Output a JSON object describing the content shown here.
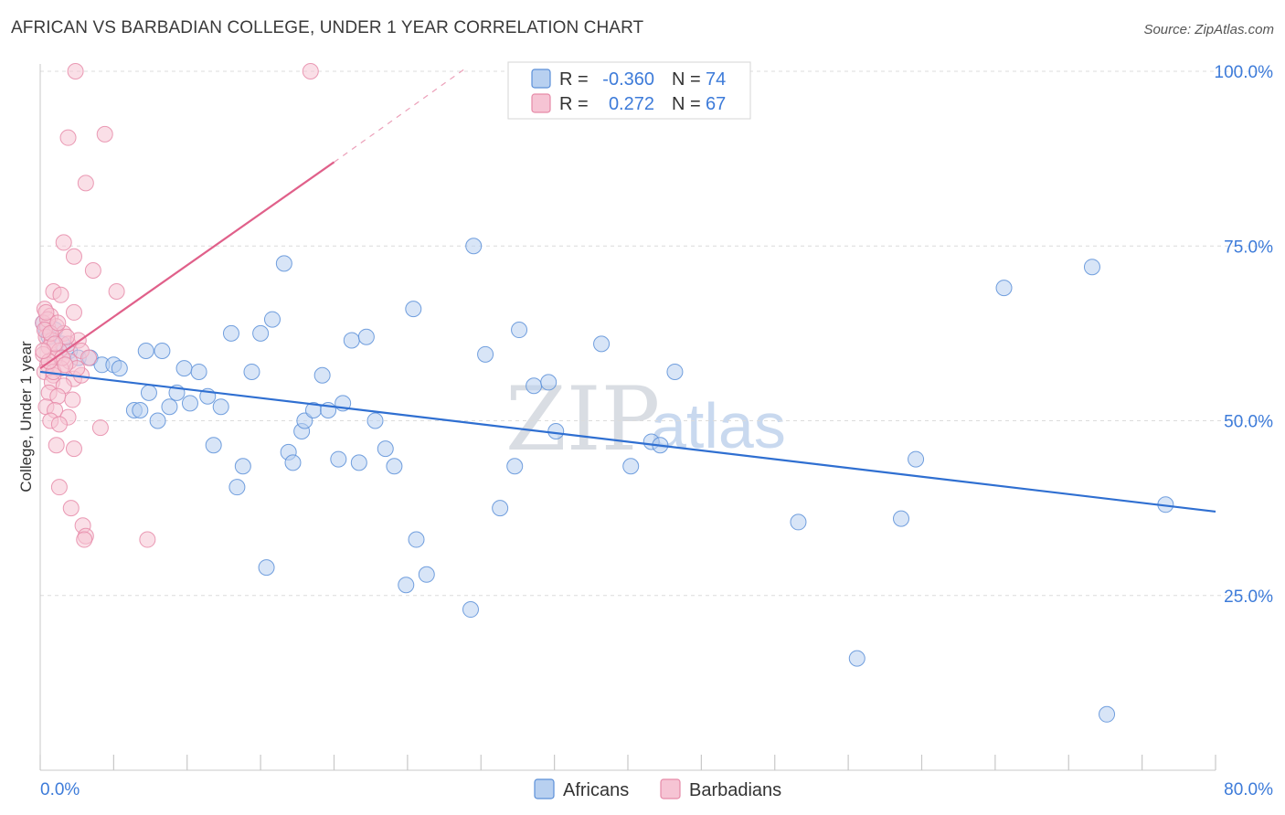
{
  "title": "AFRICAN VS BARBADIAN COLLEGE, UNDER 1 YEAR CORRELATION CHART",
  "source": "Source: ZipAtlas.com",
  "colors": {
    "africans": "#5b8fd8",
    "africans_fill": "#b8d0f0",
    "africans_line": "#2f6fd1",
    "barbadians": "#e68aa8",
    "barbadians_fill": "#f6c4d4",
    "barbadians_line": "#e0608a",
    "axis_text": "#3d7bd9",
    "grid": "#dcdcdc"
  },
  "watermark": {
    "part1": "ZIP",
    "part2": "atlas"
  },
  "legend": {
    "rows": [
      {
        "r_label": "R =",
        "r_value": "-0.360",
        "n_label": "N =",
        "n_value": "74"
      },
      {
        "r_label": "R =",
        "r_value": "0.272",
        "n_label": "N =",
        "n_value": "67"
      }
    ]
  },
  "bottom_legend": [
    "Africans",
    "Barbadians"
  ],
  "chart_data": {
    "type": "scatter",
    "title": "AFRICAN VS BARBADIAN COLLEGE, UNDER 1 YEAR CORRELATION CHART",
    "xlabel": "",
    "ylabel": "College, Under 1 year",
    "xlim": [
      0,
      80
    ],
    "ylim": [
      0,
      105
    ],
    "x_tick_labels": [
      "0.0%",
      "80.0%"
    ],
    "y_ticks": [
      25,
      50,
      75,
      100
    ],
    "y_tick_labels": [
      "25.0%",
      "50.0%",
      "75.0%",
      "100.0%"
    ],
    "grid": true,
    "series": [
      {
        "name": "Africans",
        "r": -0.36,
        "n": 74,
        "trend": {
          "x": [
            0,
            80
          ],
          "y": [
            57,
            37
          ]
        },
        "points": [
          [
            0.2,
            64
          ],
          [
            0.4,
            63
          ],
          [
            0.6,
            62
          ],
          [
            1.0,
            63
          ],
          [
            1.5,
            61
          ],
          [
            2.0,
            60
          ],
          [
            2.6,
            59
          ],
          [
            3.4,
            59
          ],
          [
            4.2,
            58
          ],
          [
            5.0,
            58
          ],
          [
            5.4,
            57.5
          ],
          [
            6.4,
            51.5
          ],
          [
            6.8,
            51.5
          ],
          [
            7.2,
            60
          ],
          [
            7.4,
            54
          ],
          [
            8.0,
            50
          ],
          [
            8.3,
            60
          ],
          [
            8.8,
            52
          ],
          [
            9.3,
            54
          ],
          [
            9.8,
            57.5
          ],
          [
            10.2,
            52.5
          ],
          [
            10.8,
            57
          ],
          [
            11.4,
            53.5
          ],
          [
            11.8,
            46.5
          ],
          [
            12.3,
            52
          ],
          [
            13.0,
            62.5
          ],
          [
            13.4,
            40.5
          ],
          [
            13.8,
            43.5
          ],
          [
            14.4,
            57
          ],
          [
            15.0,
            62.5
          ],
          [
            15.4,
            29
          ],
          [
            15.8,
            64.5
          ],
          [
            16.6,
            72.5
          ],
          [
            16.9,
            45.5
          ],
          [
            17.2,
            44
          ],
          [
            17.8,
            48.5
          ],
          [
            18.0,
            50
          ],
          [
            18.6,
            51.5
          ],
          [
            19.2,
            56.5
          ],
          [
            19.6,
            51.5
          ],
          [
            20.3,
            44.5
          ],
          [
            20.6,
            52.5
          ],
          [
            21.2,
            61.5
          ],
          [
            21.7,
            44
          ],
          [
            22.2,
            62
          ],
          [
            22.8,
            50
          ],
          [
            23.5,
            46
          ],
          [
            24.1,
            43.5
          ],
          [
            24.9,
            26.5
          ],
          [
            25.4,
            66
          ],
          [
            25.6,
            33
          ],
          [
            26.3,
            28
          ],
          [
            29.3,
            23
          ],
          [
            29.5,
            75
          ],
          [
            30.3,
            59.5
          ],
          [
            31.3,
            37.5
          ],
          [
            32.3,
            43.5
          ],
          [
            32.6,
            63
          ],
          [
            33.6,
            55
          ],
          [
            34.6,
            55.5
          ],
          [
            35.1,
            48.5
          ],
          [
            38.2,
            61
          ],
          [
            40.2,
            43.5
          ],
          [
            41.6,
            47
          ],
          [
            42.2,
            46.5
          ],
          [
            43.2,
            57
          ],
          [
            51.6,
            35.5
          ],
          [
            55.6,
            16
          ],
          [
            58.6,
            36
          ],
          [
            59.6,
            44.5
          ],
          [
            65.6,
            69
          ],
          [
            71.6,
            72
          ],
          [
            72.6,
            8
          ],
          [
            76.6,
            38
          ]
        ]
      },
      {
        "name": "Barbadians",
        "r": 0.272,
        "n": 67,
        "trend": {
          "x": [
            0,
            20
          ],
          "y": [
            57.5,
            87
          ]
        },
        "trend_ext": {
          "x": [
            20,
            29
          ],
          "y": [
            87,
            100.5
          ]
        },
        "points": [
          [
            2.4,
            100
          ],
          [
            18.4,
            100
          ],
          [
            1.9,
            90.5
          ],
          [
            4.4,
            91
          ],
          [
            3.1,
            84
          ],
          [
            1.6,
            75.5
          ],
          [
            2.3,
            73.5
          ],
          [
            3.6,
            71.5
          ],
          [
            0.9,
            68.5
          ],
          [
            1.4,
            68
          ],
          [
            5.2,
            68.5
          ],
          [
            2.3,
            65.5
          ],
          [
            0.3,
            66
          ],
          [
            0.7,
            65
          ],
          [
            0.2,
            64
          ],
          [
            0.5,
            63.5
          ],
          [
            1.1,
            63.5
          ],
          [
            1.6,
            62.5
          ],
          [
            0.4,
            62
          ],
          [
            0.8,
            61.5
          ],
          [
            1.9,
            61
          ],
          [
            2.6,
            61.5
          ],
          [
            0.6,
            60.5
          ],
          [
            1.3,
            60
          ],
          [
            0.2,
            59.5
          ],
          [
            1.0,
            59
          ],
          [
            2.0,
            58.5
          ],
          [
            0.5,
            58
          ],
          [
            1.4,
            57.5
          ],
          [
            0.3,
            57
          ],
          [
            0.9,
            56.5
          ],
          [
            2.3,
            56
          ],
          [
            2.8,
            56.5
          ],
          [
            0.8,
            55.5
          ],
          [
            1.6,
            55
          ],
          [
            0.6,
            54
          ],
          [
            1.2,
            53.5
          ],
          [
            2.2,
            53
          ],
          [
            0.4,
            52
          ],
          [
            1.0,
            51.5
          ],
          [
            1.9,
            50.5
          ],
          [
            0.7,
            50
          ],
          [
            1.3,
            49.5
          ],
          [
            4.1,
            49
          ],
          [
            1.1,
            46.5
          ],
          [
            2.3,
            46
          ],
          [
            1.3,
            40.5
          ],
          [
            2.1,
            37.5
          ],
          [
            2.9,
            35
          ],
          [
            3.1,
            33.5
          ],
          [
            7.3,
            33
          ],
          [
            0.5,
            64.5
          ],
          [
            0.3,
            63
          ],
          [
            0.7,
            62.5
          ],
          [
            1.5,
            59
          ],
          [
            2.8,
            60
          ],
          [
            0.9,
            57
          ],
          [
            0.4,
            65.5
          ],
          [
            1.2,
            64
          ],
          [
            1.8,
            62
          ],
          [
            0.6,
            58.5
          ],
          [
            2.5,
            57.5
          ],
          [
            1.0,
            61
          ],
          [
            0.2,
            60
          ],
          [
            1.7,
            58
          ],
          [
            3.3,
            59
          ],
          [
            3.0,
            33
          ]
        ]
      }
    ]
  }
}
